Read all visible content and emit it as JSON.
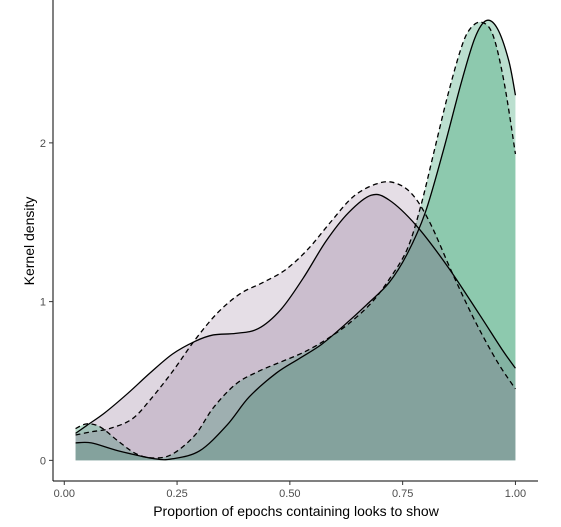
{
  "chart_data": {
    "type": "area",
    "title": "",
    "xlabel": "Proportion of epochs containing looks to show",
    "ylabel": "Kernel density",
    "xlim": [
      -0.025,
      1.05
    ],
    "ylim": [
      -0.13,
      2.9
    ],
    "x_ticks": [
      0.0,
      0.25,
      0.5,
      0.75,
      1.0
    ],
    "x_tick_labels": [
      "0.00",
      "0.25",
      "0.50",
      "0.75",
      "1.00"
    ],
    "y_ticks": [
      0,
      1,
      2
    ],
    "y_tick_labels": [
      "0",
      "1",
      "2"
    ],
    "grid": false,
    "legend": "none",
    "series": [
      {
        "fill": "#b3b3b3",
        "stroke": "#000000",
        "dashed": false,
        "points": [
          [
            0.025,
            0.11
          ],
          [
            0.06,
            0.11
          ],
          [
            0.12,
            0.06
          ],
          [
            0.2,
            0.01
          ],
          [
            0.24,
            0.01
          ],
          [
            0.3,
            0.06
          ],
          [
            0.36,
            0.22
          ],
          [
            0.41,
            0.4
          ],
          [
            0.47,
            0.55
          ],
          [
            0.52,
            0.64
          ],
          [
            0.57,
            0.73
          ],
          [
            0.62,
            0.85
          ],
          [
            0.67,
            0.98
          ],
          [
            0.72,
            1.12
          ],
          [
            0.76,
            1.3
          ],
          [
            0.8,
            1.56
          ],
          [
            0.84,
            1.95
          ],
          [
            0.88,
            2.38
          ],
          [
            0.91,
            2.66
          ],
          [
            0.935,
            2.77
          ],
          [
            0.96,
            2.72
          ],
          [
            0.985,
            2.52
          ],
          [
            1.0,
            2.3
          ]
        ]
      },
      {
        "fill": "#b3b3b3",
        "stroke": "#000000",
        "dashed": false,
        "points": [
          [
            0.025,
            0.17
          ],
          [
            0.05,
            0.22
          ],
          [
            0.09,
            0.3
          ],
          [
            0.14,
            0.42
          ],
          [
            0.19,
            0.55
          ],
          [
            0.24,
            0.67
          ],
          [
            0.29,
            0.75
          ],
          [
            0.33,
            0.79
          ],
          [
            0.38,
            0.8
          ],
          [
            0.43,
            0.83
          ],
          [
            0.48,
            0.95
          ],
          [
            0.53,
            1.15
          ],
          [
            0.58,
            1.38
          ],
          [
            0.63,
            1.56
          ],
          [
            0.68,
            1.67
          ],
          [
            0.72,
            1.64
          ],
          [
            0.78,
            1.48
          ],
          [
            0.85,
            1.22
          ],
          [
            0.92,
            0.92
          ],
          [
            0.97,
            0.7
          ],
          [
            1.0,
            0.58
          ]
        ]
      },
      {
        "fill": "#b3b3b3",
        "stroke": "#000000",
        "dashed": true,
        "points": [
          [
            0.025,
            0.2
          ],
          [
            0.05,
            0.23
          ],
          [
            0.08,
            0.21
          ],
          [
            0.12,
            0.12
          ],
          [
            0.16,
            0.04
          ],
          [
            0.2,
            0.015
          ],
          [
            0.24,
            0.04
          ],
          [
            0.29,
            0.16
          ],
          [
            0.33,
            0.33
          ],
          [
            0.38,
            0.48
          ],
          [
            0.43,
            0.56
          ],
          [
            0.48,
            0.62
          ],
          [
            0.53,
            0.68
          ],
          [
            0.58,
            0.76
          ],
          [
            0.63,
            0.86
          ],
          [
            0.68,
            0.99
          ],
          [
            0.72,
            1.14
          ],
          [
            0.76,
            1.33
          ],
          [
            0.79,
            1.6
          ],
          [
            0.82,
            1.95
          ],
          [
            0.85,
            2.3
          ],
          [
            0.88,
            2.6
          ],
          [
            0.9,
            2.72
          ],
          [
            0.925,
            2.76
          ],
          [
            0.95,
            2.68
          ],
          [
            0.975,
            2.38
          ],
          [
            1.0,
            1.93
          ]
        ]
      },
      {
        "fill": "#b3b3b3",
        "stroke": "#000000",
        "dashed": true,
        "points": [
          [
            0.025,
            0.16
          ],
          [
            0.06,
            0.18
          ],
          [
            0.1,
            0.2
          ],
          [
            0.15,
            0.26
          ],
          [
            0.19,
            0.38
          ],
          [
            0.24,
            0.56
          ],
          [
            0.29,
            0.76
          ],
          [
            0.34,
            0.93
          ],
          [
            0.39,
            1.05
          ],
          [
            0.44,
            1.12
          ],
          [
            0.49,
            1.2
          ],
          [
            0.54,
            1.33
          ],
          [
            0.59,
            1.5
          ],
          [
            0.64,
            1.66
          ],
          [
            0.69,
            1.74
          ],
          [
            0.73,
            1.75
          ],
          [
            0.77,
            1.68
          ],
          [
            0.81,
            1.5
          ],
          [
            0.86,
            1.18
          ],
          [
            0.91,
            0.88
          ],
          [
            0.96,
            0.62
          ],
          [
            1.0,
            0.45
          ]
        ]
      }
    ]
  }
}
